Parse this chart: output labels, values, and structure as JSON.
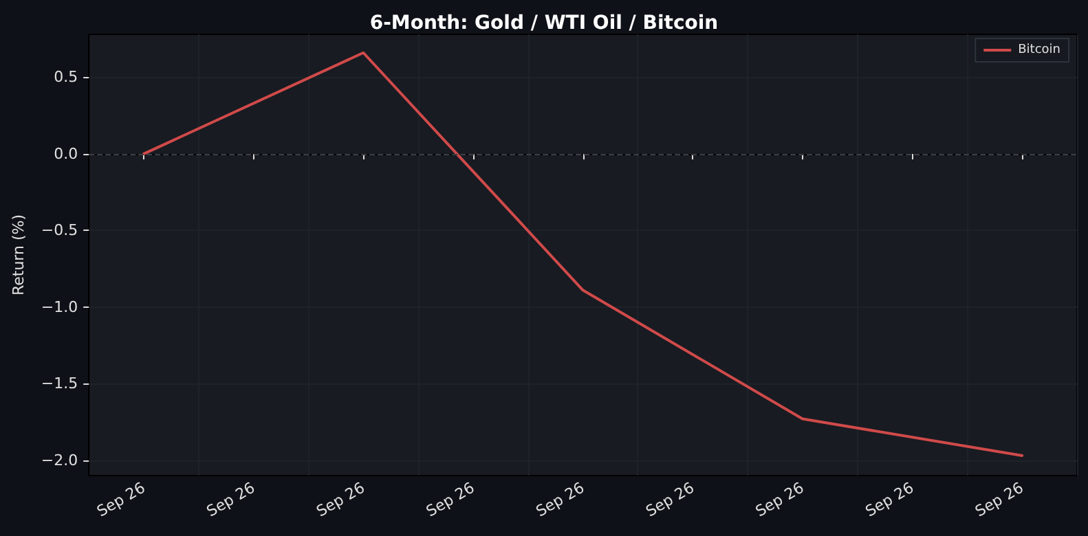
{
  "chart_data": {
    "type": "line",
    "title": "6-Month: Gold / WTI Oil / Bitcoin",
    "ylabel": "Return (%)",
    "categories": [
      "Sep 26",
      "Sep 26",
      "Sep 26",
      "Sep 26",
      "Sep 26",
      "Sep 26",
      "Sep 26",
      "Sep 26",
      "Sep 26"
    ],
    "series": [
      {
        "name": "Bitcoin",
        "color": "#d04a4a",
        "values": [
          0,
          null,
          0.66,
          null,
          -0.89,
          null,
          -1.73,
          null,
          -1.97
        ]
      }
    ],
    "ylim": [
      -2.1,
      0.78
    ],
    "yticks": [
      {
        "value": -2,
        "label": "−2.0"
      },
      {
        "value": -1.5,
        "label": "−1.5"
      },
      {
        "value": -1,
        "label": "−1.0"
      },
      {
        "value": -0.5,
        "label": "−0.5"
      },
      {
        "value": 0,
        "label": "0.0"
      },
      {
        "value": 0.5,
        "label": "0.5"
      }
    ],
    "ref_lines": [
      {
        "axis": "y",
        "value": 0,
        "color": "#3a3f47",
        "line_style": "dashed"
      }
    ],
    "grid": true,
    "legend": "top right",
    "marker": "none",
    "line_style": "solid"
  }
}
